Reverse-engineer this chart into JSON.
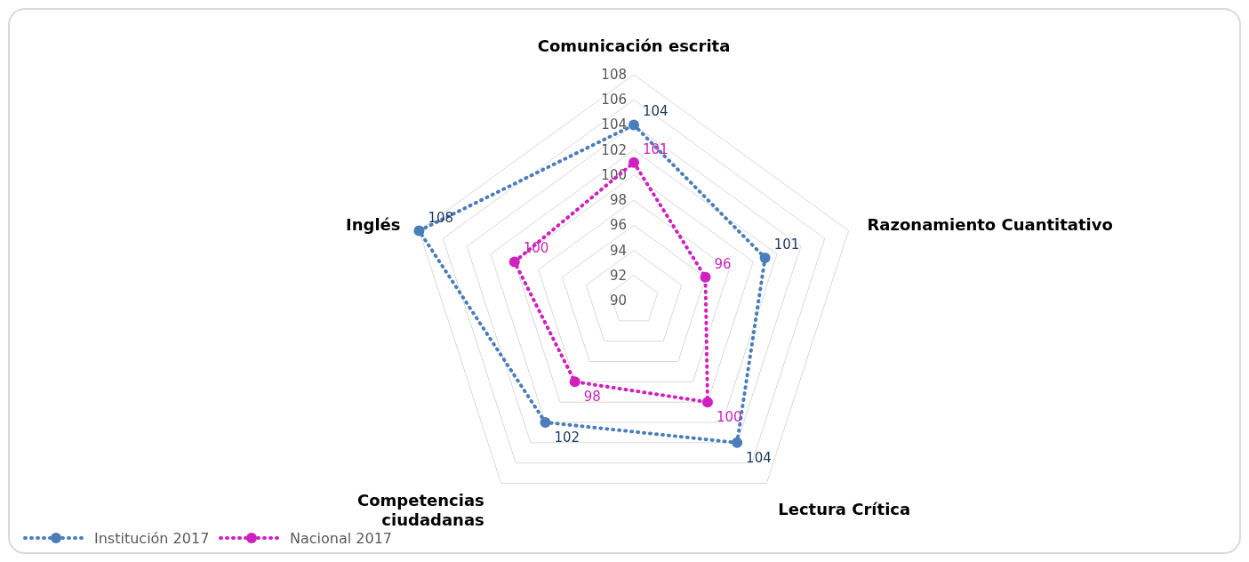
{
  "chart_data": {
    "type": "radar",
    "categories": [
      "Comunicación escrita",
      "Razonamiento Cuantitativo",
      "Lectura Crítica",
      "Competencias ciudadanas",
      "Inglés"
    ],
    "series": [
      {
        "name": "Institución 2017",
        "color": "#4a7ebb",
        "values": [
          104,
          101,
          104,
          102,
          108
        ]
      },
      {
        "name": "Nacional 2017",
        "color": "#d21fbf",
        "values": [
          101,
          96,
          100,
          98,
          100
        ]
      }
    ],
    "ylim": [
      90,
      108
    ],
    "yticks": [
      90,
      92,
      94,
      96,
      98,
      100,
      102,
      104,
      106,
      108
    ],
    "data_labels": true,
    "legend": "bottom left",
    "marker": "circle",
    "line_style": "dotted",
    "grid": true
  }
}
